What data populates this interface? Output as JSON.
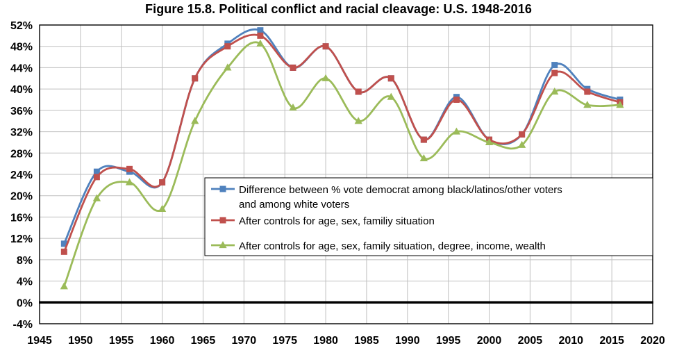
{
  "chart_data": {
    "type": "line",
    "title": "Figure 15.8. Political conflict and racial cleavage: U.S. 1948-2016",
    "xlabel": "",
    "ylabel": "",
    "xlim": [
      1945,
      2020
    ],
    "ylim": [
      -4,
      52
    ],
    "x_ticks": [
      1945,
      1950,
      1955,
      1960,
      1965,
      1970,
      1975,
      1980,
      1985,
      1990,
      1995,
      2000,
      2005,
      2010,
      2015,
      2020
    ],
    "y_ticks": [
      -4,
      0,
      4,
      8,
      12,
      16,
      20,
      24,
      28,
      32,
      36,
      40,
      44,
      48,
      52
    ],
    "y_tick_suffix": "%",
    "grid": true,
    "gridline_color": "#bfbfbf",
    "zero_line_color": "#000000",
    "legend_position": "inside-right",
    "x": [
      1948,
      1952,
      1956,
      1960,
      1964,
      1968,
      1972,
      1976,
      1980,
      1984,
      1988,
      1992,
      1996,
      2000,
      2004,
      2008,
      2012,
      2016
    ],
    "series": [
      {
        "name": "Difference between % vote democrat among black/latinos/other voters and among white voters",
        "legend_lines": [
          "Difference between % vote democrat among black/latinos/other voters",
          "and among white voters"
        ],
        "color": "#4F81BD",
        "marker": "square",
        "values": [
          11,
          24.5,
          24.5,
          22.5,
          42,
          48.5,
          51,
          44,
          48,
          39.5,
          42,
          30.5,
          38.5,
          30.5,
          31.5,
          44.5,
          40,
          38
        ]
      },
      {
        "name": "After controls for age, sex, familiy situation",
        "legend_lines": [
          "After controls for age, sex, familiy situation"
        ],
        "color": "#C0504D",
        "marker": "square",
        "values": [
          9.5,
          23.5,
          25,
          22.5,
          42,
          48,
          50,
          44,
          48,
          39.5,
          42,
          30.5,
          38,
          30.5,
          31.5,
          43,
          39.5,
          37.5
        ]
      },
      {
        "name": "After controls for age, sex, family situation, degree, income, wealth",
        "legend_lines": [
          "After controls for age, sex, family situation, degree, income, wealth"
        ],
        "color": "#9BBB59",
        "marker": "triangle",
        "values": [
          3,
          19.5,
          22.5,
          17.5,
          34,
          44,
          48.5,
          36.5,
          42,
          34,
          38.5,
          27,
          32,
          30,
          29.5,
          39.5,
          37,
          37
        ]
      }
    ]
  }
}
